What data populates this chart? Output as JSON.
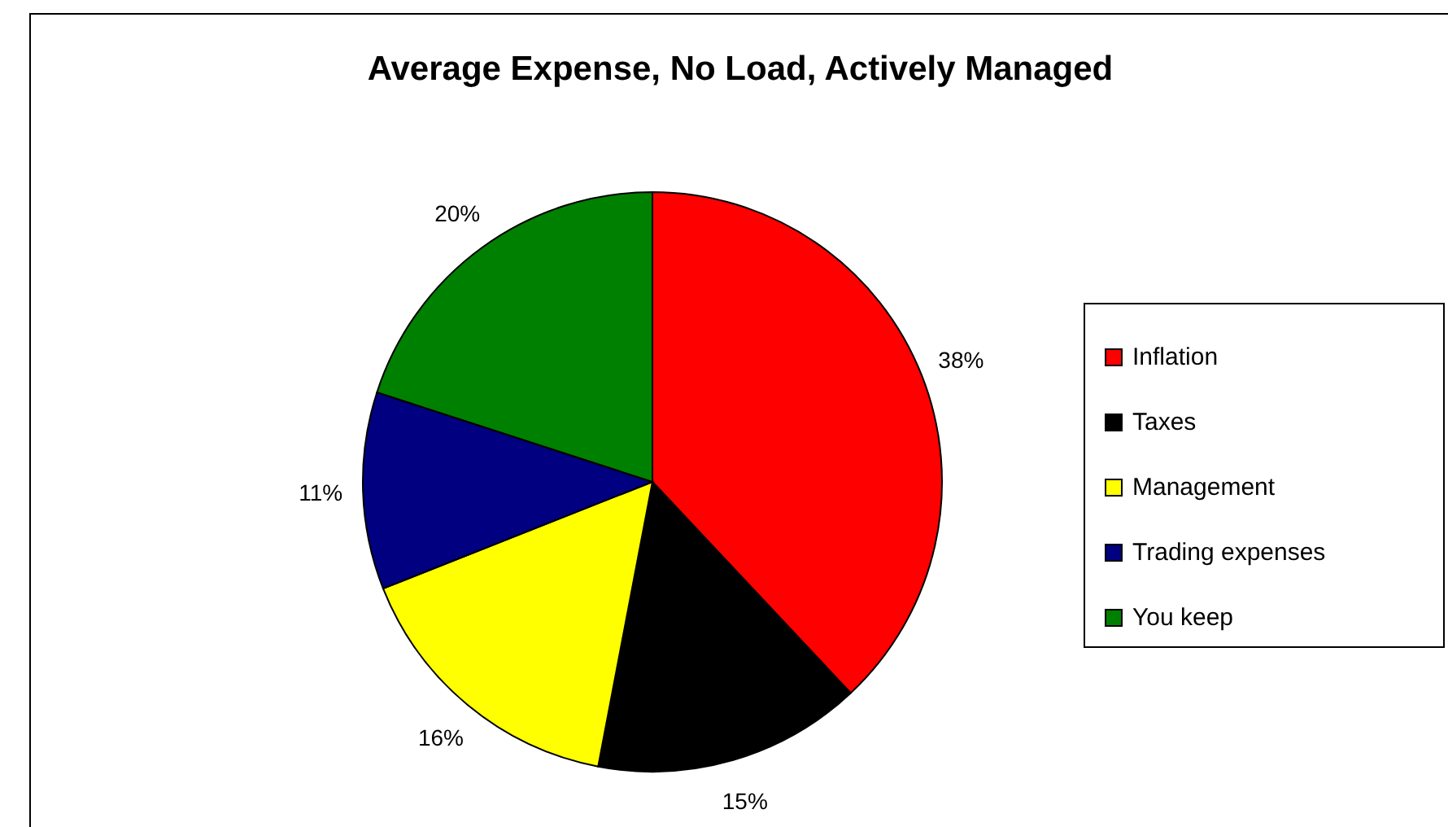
{
  "chart_data": {
    "type": "pie",
    "title": "Average Expense, No Load, Actively Managed",
    "categories": [
      "Inflation",
      "Taxes",
      "Management",
      "Trading expenses",
      "You keep"
    ],
    "values": [
      38,
      15,
      16,
      11,
      20
    ],
    "colors": [
      "#ff0000",
      "#000000",
      "#ffff00",
      "#000080",
      "#008000"
    ],
    "value_labels": [
      "38%",
      "15%",
      "16%",
      "11%",
      "20%"
    ],
    "legend": "right"
  }
}
